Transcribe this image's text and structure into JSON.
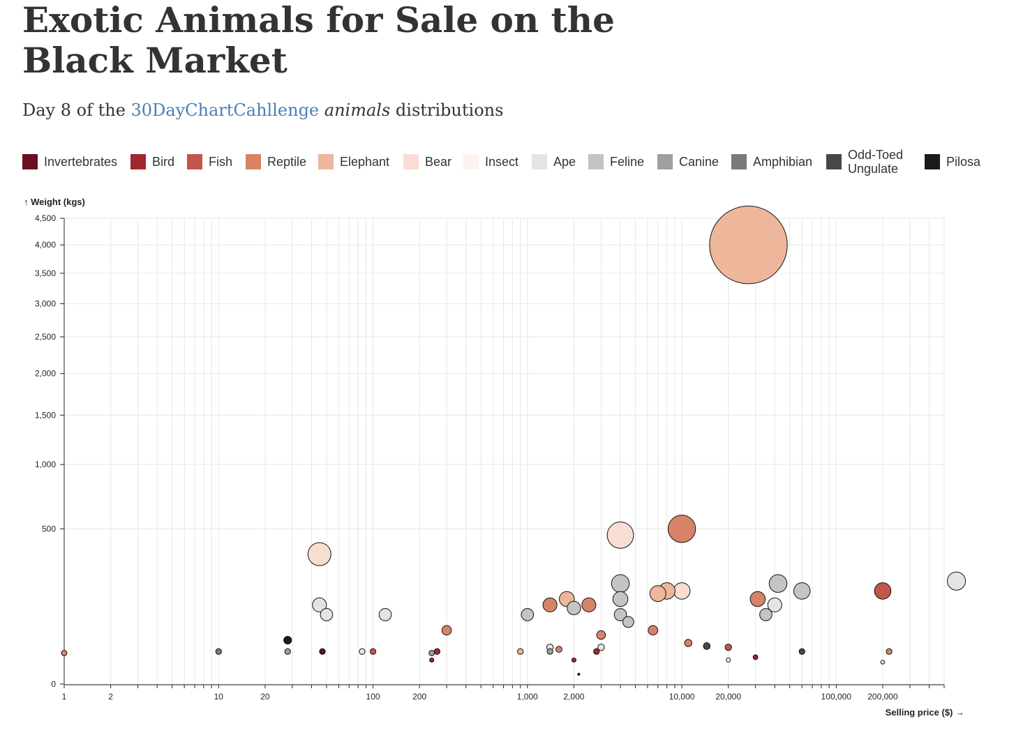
{
  "title": "Exotic Animals for Sale on the Black Market",
  "subtitle": {
    "prefix": "Day 8 of the ",
    "link": "30DayChartCahllenge",
    "space": " ",
    "emphasis": "animals",
    "suffix": " distributions"
  },
  "legend": [
    {
      "label": "Invertebrates",
      "color": "#67101f"
    },
    {
      "label": "Bird",
      "color": "#a2262d"
    },
    {
      "label": "Fish",
      "color": "#c3564c"
    },
    {
      "label": "Reptile",
      "color": "#d6836a"
    },
    {
      "label": "Elephant",
      "color": "#eeb69b"
    },
    {
      "label": "Bear",
      "color": "#f8ded2"
    },
    {
      "label": "Insect",
      "color": "#fbf3ef"
    },
    {
      "label": "Ape",
      "color": "#e4e4e4"
    },
    {
      "label": "Feline",
      "color": "#c4c4c4"
    },
    {
      "label": "Canine",
      "color": "#9f9f9f"
    },
    {
      "label": "Amphibian",
      "color": "#797979"
    },
    {
      "label": "Odd-Toed Ungulate",
      "color": "#474747"
    },
    {
      "label": "Pilosa",
      "color": "#1b1b1b"
    }
  ],
  "chart_data": {
    "type": "scatter",
    "xlabel": "↑ Weight (kgs)",
    "ylabel_note": "",
    "x_axis_label": "Selling price ($) →",
    "y_axis_label": "↑ Weight (kgs)",
    "x_scale": "log",
    "y_scale": "sqrt",
    "xlim": [
      1,
      500000
    ],
    "ylim": [
      0,
      4500
    ],
    "x_tick_labels": [
      "1",
      "2",
      "10",
      "20",
      "100",
      "200",
      "1,000",
      "2,000",
      "10,000",
      "20,000",
      "100,000",
      "200,000"
    ],
    "x_tick_values": [
      1,
      2,
      10,
      20,
      100,
      200,
      1000,
      2000,
      10000,
      20000,
      100000,
      200000
    ],
    "y_tick_labels": [
      "0",
      "500",
      "1,000",
      "1,500",
      "2,000",
      "2,500",
      "3,000",
      "3,500",
      "4,000",
      "4,500"
    ],
    "y_tick_values": [
      0,
      500,
      1000,
      1500,
      2000,
      2500,
      3000,
      3500,
      4000,
      4500
    ],
    "grid": true,
    "points": [
      {
        "category": "Elephant",
        "price": 27000,
        "weight": 4000
      },
      {
        "category": "Reptile",
        "price": 10000,
        "weight": 500
      },
      {
        "category": "Bear",
        "price": 4000,
        "weight": 460
      },
      {
        "category": "Bear",
        "price": 45,
        "weight": 350
      },
      {
        "category": "Ape",
        "price": 600000,
        "weight": 220
      },
      {
        "category": "Fish",
        "price": 200000,
        "weight": 180
      },
      {
        "category": "Feline",
        "price": 60000,
        "weight": 180
      },
      {
        "category": "Feline",
        "price": 42000,
        "weight": 210
      },
      {
        "category": "Ape",
        "price": 40000,
        "weight": 130
      },
      {
        "category": "Feline",
        "price": 35000,
        "weight": 100
      },
      {
        "category": "Reptile",
        "price": 31000,
        "weight": 150
      },
      {
        "category": "Bear",
        "price": 10000,
        "weight": 180
      },
      {
        "category": "Elephant",
        "price": 8000,
        "weight": 180
      },
      {
        "category": "Elephant",
        "price": 7000,
        "weight": 170
      },
      {
        "category": "Feline",
        "price": 4000,
        "weight": 210
      },
      {
        "category": "Feline",
        "price": 4000,
        "weight": 150
      },
      {
        "category": "Feline",
        "price": 4500,
        "weight": 80
      },
      {
        "category": "Feline",
        "price": 4000,
        "weight": 100
      },
      {
        "category": "Reptile",
        "price": 6500,
        "weight": 60
      },
      {
        "category": "Reptile",
        "price": 3000,
        "weight": 50
      },
      {
        "category": "Elephant",
        "price": 1800,
        "weight": 150
      },
      {
        "category": "Reptile",
        "price": 2500,
        "weight": 130
      },
      {
        "category": "Feline",
        "price": 2000,
        "weight": 120
      },
      {
        "category": "Reptile",
        "price": 1400,
        "weight": 130
      },
      {
        "category": "Feline",
        "price": 1000,
        "weight": 100
      },
      {
        "category": "Reptile",
        "price": 300,
        "weight": 60
      },
      {
        "category": "Ape",
        "price": 120,
        "weight": 100
      },
      {
        "category": "Ape",
        "price": 50,
        "weight": 100
      },
      {
        "category": "Ape",
        "price": 45,
        "weight": 130
      },
      {
        "category": "Pilosa",
        "price": 28,
        "weight": 40
      },
      {
        "category": "Reptile",
        "price": 11000,
        "weight": 35
      },
      {
        "category": "Odd-Toed Ungulate",
        "price": 14500,
        "weight": 30
      },
      {
        "category": "Fish",
        "price": 20000,
        "weight": 28
      },
      {
        "category": "Reptile",
        "price": 1,
        "weight": 20
      },
      {
        "category": "Amphibian",
        "price": 10,
        "weight": 22
      },
      {
        "category": "Canine",
        "price": 28,
        "weight": 22
      },
      {
        "category": "Invertebrates",
        "price": 47,
        "weight": 22
      },
      {
        "category": "Ape",
        "price": 85,
        "weight": 22
      },
      {
        "category": "Fish",
        "price": 100,
        "weight": 22
      },
      {
        "category": "Canine",
        "price": 240,
        "weight": 20
      },
      {
        "category": "Bird",
        "price": 260,
        "weight": 22
      },
      {
        "category": "Bird",
        "price": 240,
        "weight": 12
      },
      {
        "category": "Elephant",
        "price": 900,
        "weight": 22
      },
      {
        "category": "Reptile",
        "price": 1600,
        "weight": 25
      },
      {
        "category": "Ape",
        "price": 1400,
        "weight": 28
      },
      {
        "category": "Canine",
        "price": 1400,
        "weight": 22
      },
      {
        "category": "Bird",
        "price": 2000,
        "weight": 12
      },
      {
        "category": "Pilosa",
        "price": 2150,
        "weight": 2
      },
      {
        "category": "Ape",
        "price": 3000,
        "weight": 28
      },
      {
        "category": "Bird",
        "price": 2800,
        "weight": 22
      },
      {
        "category": "Insect",
        "price": 20000,
        "weight": 12
      },
      {
        "category": "Bird",
        "price": 30000,
        "weight": 15
      },
      {
        "category": "Odd-Toed Ungulate",
        "price": 60000,
        "weight": 22
      },
      {
        "category": "Reptile",
        "price": 220000,
        "weight": 22
      },
      {
        "category": "Bear",
        "price": 200000,
        "weight": 10
      }
    ]
  }
}
